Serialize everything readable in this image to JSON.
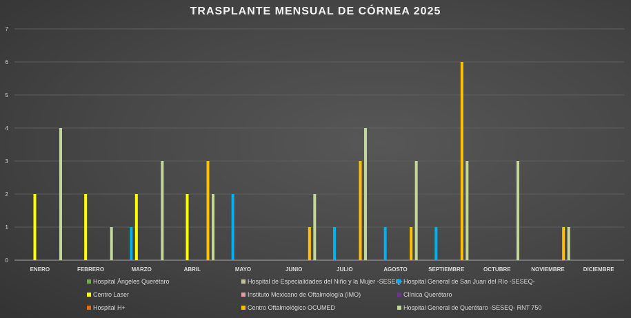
{
  "chart_data": {
    "type": "bar",
    "title": "TRASPLANTE MENSUAL DE CÓRNEA 2025",
    "xlabel": "",
    "ylabel": "",
    "ylim": [
      0,
      7
    ],
    "yticks": [
      "0",
      "1",
      "2",
      "3",
      "4",
      "5",
      "6",
      "7"
    ],
    "grid": true,
    "legend_position": "bottom",
    "categories": [
      "ENERO",
      "FEBRERO",
      "MARZO",
      "ABRIL",
      "MAYO",
      "JUNIO",
      "JULIO",
      "AGOSTO",
      "SEPTIEMBRE",
      "OCTUBRE",
      "NOVIEMBRE",
      "DICIEMBRE"
    ],
    "series": [
      {
        "name": "Hospital Ángeles Querétaro",
        "color": "#70ad47",
        "values": [
          0,
          0,
          0,
          0,
          0,
          0,
          0,
          0,
          0,
          0,
          0,
          0
        ]
      },
      {
        "name": "Hospital de Especialidades del Niño y la Mujer -SESEQ-",
        "color": "#c9c39b",
        "values": [
          0,
          0,
          0,
          0,
          0,
          0,
          0,
          0,
          0,
          0,
          0,
          0
        ]
      },
      {
        "name": "Hospital General de San Juan del Río -SESEQ-",
        "color": "#00b0f0",
        "values": [
          0,
          0,
          1,
          0,
          2,
          0,
          1,
          1,
          1,
          0,
          0,
          0
        ]
      },
      {
        "name": "Centro Laser",
        "color": "#ffff00",
        "values": [
          2,
          2,
          2,
          2,
          0,
          0,
          0,
          0,
          0,
          0,
          0,
          0
        ]
      },
      {
        "name": "Instituto Mexicano de Oftalmología (IMO)",
        "color": "#e6a0a0",
        "values": [
          0,
          0,
          0,
          0,
          0,
          0,
          0,
          0,
          0,
          0,
          0,
          0
        ]
      },
      {
        "name": "Clínica Querétaro",
        "color": "#7030a0",
        "values": [
          0,
          0,
          0,
          0,
          0,
          0,
          0,
          0,
          0,
          0,
          0,
          0
        ]
      },
      {
        "name": "Hospital H+",
        "color": "#e46c0a",
        "values": [
          0,
          0,
          0,
          0,
          0,
          0,
          0,
          0,
          0,
          0,
          0,
          0
        ]
      },
      {
        "name": "Centro Oftalmológico OCUMED",
        "color": "#ffc000",
        "values": [
          0,
          0,
          0,
          3,
          0,
          1,
          3,
          1,
          6,
          0,
          1,
          0
        ]
      },
      {
        "name": "Hospital General de Querétaro -SESEQ- RNT 750",
        "color": "#c4d79b",
        "values": [
          4,
          1,
          3,
          2,
          0,
          2,
          4,
          3,
          3,
          3,
          1,
          0
        ]
      }
    ]
  }
}
